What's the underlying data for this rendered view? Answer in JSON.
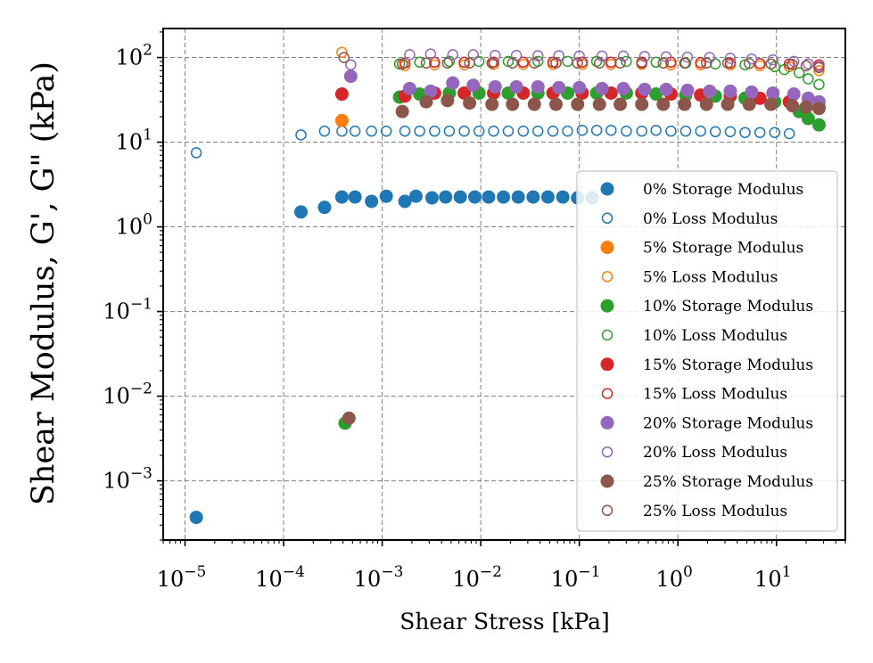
{
  "chart_data": {
    "type": "scatter",
    "title": "",
    "xlabel": "Shear Stress [kPa]",
    "ylabel": "Shear Modulus, G', G\" (kPa)",
    "xscale": "log",
    "yscale": "log",
    "xlim": [
      6e-06,
      50
    ],
    "ylim": [
      0.0002,
      220
    ],
    "grid": true,
    "legend_position": "lower-right",
    "x_ticks": [
      {
        "value": 1e-05,
        "base": "10",
        "exp": "−5"
      },
      {
        "value": 0.0001,
        "base": "10",
        "exp": "−4"
      },
      {
        "value": 0.001,
        "base": "10",
        "exp": "−3"
      },
      {
        "value": 0.01,
        "base": "10",
        "exp": "−2"
      },
      {
        "value": 0.1,
        "base": "10",
        "exp": "−1"
      },
      {
        "value": 1,
        "base": "10",
        "exp": "0"
      },
      {
        "value": 10,
        "base": "10",
        "exp": "1"
      }
    ],
    "y_ticks": [
      {
        "value": 0.001,
        "base": "10",
        "exp": "−3"
      },
      {
        "value": 0.01,
        "base": "10",
        "exp": "−2"
      },
      {
        "value": 0.1,
        "base": "10",
        "exp": "−1"
      },
      {
        "value": 1,
        "base": "10",
        "exp": "0"
      },
      {
        "value": 10,
        "base": "10",
        "exp": "1"
      },
      {
        "value": 100,
        "base": "10",
        "exp": "2"
      }
    ],
    "series": [
      {
        "name": "0% Storage Modulus",
        "color": "#1f77b4",
        "filled": true,
        "x": [
          1.3e-05,
          0.00015,
          0.00026,
          0.00039,
          0.00053,
          0.00078,
          0.0011,
          0.0017,
          0.0022,
          0.0032,
          0.0044,
          0.0062,
          0.0087,
          0.012,
          0.017,
          0.024,
          0.034,
          0.048,
          0.068,
          0.096,
          0.135
        ],
        "y": [
          0.00037,
          1.5,
          1.7,
          2.25,
          2.25,
          2.0,
          2.3,
          2.0,
          2.3,
          2.2,
          2.25,
          2.25,
          2.25,
          2.25,
          2.25,
          2.25,
          2.25,
          2.25,
          2.25,
          2.2,
          2.2
        ]
      },
      {
        "name": "0% Loss Modulus",
        "color": "#1f77b4",
        "filled": false,
        "x": [
          1.3e-05,
          0.00015,
          0.00026,
          0.00039,
          0.00053,
          0.00078,
          0.0011,
          0.0017,
          0.0024,
          0.0034,
          0.0048,
          0.0068,
          0.0096,
          0.0135,
          0.019,
          0.027,
          0.038,
          0.054,
          0.076,
          0.107,
          0.15,
          0.21,
          0.3,
          0.43,
          0.6,
          0.85,
          1.2,
          1.7,
          2.4,
          3.4,
          4.8,
          6.8,
          9.6,
          13.5
        ],
        "y": [
          7.5,
          12.2,
          13.5,
          13.5,
          13.5,
          13.5,
          13.5,
          13.5,
          13.5,
          13.5,
          13.5,
          13.5,
          13.5,
          13.5,
          13.5,
          13.5,
          13.5,
          13.5,
          13.5,
          13.8,
          13.8,
          13.8,
          13.5,
          13.5,
          13.8,
          13.5,
          13.5,
          13.5,
          13.3,
          13.3,
          13.0,
          13.0,
          13.0,
          12.6
        ]
      },
      {
        "name": "5% Storage Modulus",
        "color": "#ff7f0e",
        "filled": true,
        "x": [
          0.00039
        ],
        "y": [
          18
        ]
      },
      {
        "name": "5% Loss Modulus",
        "color": "#ff7f0e",
        "filled": false,
        "x": [
          0.00039,
          0.0017,
          0.0034,
          0.0068,
          0.0135,
          0.027,
          0.054,
          0.107,
          0.21,
          0.43,
          0.85,
          1.7,
          3.4,
          6.8,
          13.5,
          27
        ],
        "y": [
          115,
          80,
          82,
          82,
          83,
          83,
          83,
          83,
          83,
          83,
          82,
          82,
          82,
          80,
          78,
          70
        ]
      },
      {
        "name": "10% Storage Modulus",
        "color": "#2ca02c",
        "filled": true,
        "x": [
          0.00042,
          0.0015,
          0.0024,
          0.0048,
          0.0096,
          0.019,
          0.038,
          0.076,
          0.15,
          0.3,
          0.6,
          1.2,
          2.4,
          4.8,
          9.6,
          17,
          21,
          27
        ],
        "y": [
          0.0048,
          34,
          37,
          38,
          38,
          38,
          38,
          38,
          38,
          38,
          37,
          36,
          35,
          33,
          30,
          23,
          19,
          16
        ]
      },
      {
        "name": "10% Loss Modulus",
        "color": "#2ca02c",
        "filled": false,
        "x": [
          0.0015,
          0.0024,
          0.0048,
          0.0096,
          0.019,
          0.038,
          0.076,
          0.15,
          0.3,
          0.6,
          1.2,
          2.4,
          4.8,
          9.6,
          12,
          17,
          21,
          27
        ],
        "y": [
          84,
          88,
          90,
          90,
          90,
          90,
          90,
          90,
          90,
          88,
          86,
          84,
          82,
          78,
          72,
          66,
          56,
          48
        ]
      },
      {
        "name": "15% Storage Modulus",
        "color": "#d62728",
        "filled": true,
        "x": [
          0.00039,
          0.0017,
          0.0034,
          0.0068,
          0.0135,
          0.027,
          0.054,
          0.107,
          0.21,
          0.43,
          0.85,
          1.7,
          3.4,
          6.8,
          13.5,
          27
        ],
        "y": [
          37,
          35,
          38,
          38,
          38,
          38,
          38,
          38,
          38,
          38,
          37,
          36,
          35,
          33,
          30,
          26
        ]
      },
      {
        "name": "15% Loss Modulus",
        "color": "#d62728",
        "filled": false,
        "x": [
          0.0017,
          0.0034,
          0.0068,
          0.0135,
          0.027,
          0.054,
          0.107,
          0.21,
          0.43,
          0.85,
          1.7,
          3.4,
          6.8,
          13.5,
          27
        ],
        "y": [
          86,
          88,
          88,
          88,
          88,
          88,
          88,
          88,
          88,
          88,
          87,
          86,
          85,
          84,
          82
        ]
      },
      {
        "name": "20% Storage Modulus",
        "color": "#9467bd",
        "filled": true,
        "x": [
          0.00048,
          0.0019,
          0.0031,
          0.0052,
          0.0084,
          0.014,
          0.023,
          0.038,
          0.062,
          0.1,
          0.17,
          0.28,
          0.46,
          0.76,
          1.25,
          2.1,
          3.4,
          5.6,
          9.2,
          15,
          21,
          27
        ],
        "y": [
          60,
          43,
          40,
          50,
          47,
          45,
          45,
          45,
          44,
          44,
          43,
          43,
          42,
          42,
          41,
          40,
          40,
          39,
          38,
          37,
          33,
          30
        ]
      },
      {
        "name": "20% Loss Modulus",
        "color": "#9467bd",
        "filled": false,
        "x": [
          0.00048,
          0.0019,
          0.0031,
          0.0052,
          0.0084,
          0.014,
          0.023,
          0.038,
          0.062,
          0.1,
          0.17,
          0.28,
          0.46,
          0.76,
          1.25,
          2.1,
          3.4,
          5.6,
          9.2,
          15,
          21,
          27
        ],
        "y": [
          82,
          108,
          110,
          108,
          108,
          106,
          106,
          105,
          105,
          104,
          104,
          104,
          103,
          102,
          101,
          100,
          98,
          96,
          94,
          90,
          84,
          78
        ]
      },
      {
        "name": "25% Storage Modulus",
        "color": "#8c564b",
        "filled": true,
        "x": [
          0.00046,
          0.0016,
          0.0028,
          0.0046,
          0.0077,
          0.013,
          0.021,
          0.035,
          0.058,
          0.096,
          0.16,
          0.26,
          0.43,
          0.71,
          1.17,
          1.95,
          3.2,
          5.3,
          8.8,
          14.5,
          20,
          27
        ],
        "y": [
          0.0055,
          23,
          30,
          31,
          29,
          28,
          28,
          28,
          28,
          28,
          28,
          28,
          28,
          28,
          28,
          28,
          28,
          28,
          28,
          27,
          26,
          25
        ]
      },
      {
        "name": "25% Loss Modulus",
        "color": "#8c564b",
        "filled": false,
        "x": [
          0.00041,
          0.0016,
          0.0028,
          0.0046,
          0.0077,
          0.013,
          0.021,
          0.035,
          0.058,
          0.096,
          0.16,
          0.26,
          0.43,
          0.71,
          1.17,
          1.95,
          3.2,
          5.3,
          8.8,
          14.5,
          20,
          27
        ],
        "y": [
          100,
          84,
          86,
          86,
          86,
          86,
          86,
          86,
          86,
          86,
          86,
          86,
          86,
          86,
          86,
          86,
          86,
          85,
          84,
          83,
          80,
          76
        ]
      }
    ]
  }
}
